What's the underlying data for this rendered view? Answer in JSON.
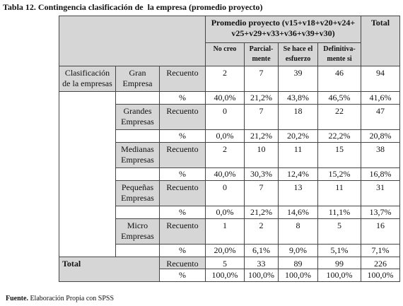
{
  "title": "Tabla 12. Contingencia clasificación de  la empresa (promedio proyecto)",
  "table": {
    "header": {
      "group": "Promedio proyecto (v15+v18+v20+v24+\nv25+v29+v33+v36+v39+v30)",
      "total": "Total",
      "columns": [
        "No creo",
        "Parcial-\nmente",
        "Se hace el\nesfuerzo",
        "Definitiva-\nmente si"
      ]
    },
    "row_group_label": "Clasificación\nde la empresas",
    "groups": [
      {
        "label": "Gran\nEmpresa",
        "rows": [
          {
            "measure": "Recuento",
            "cells": [
              "2",
              "7",
              "39",
              "46",
              "94"
            ]
          },
          {
            "measure": "%",
            "cells": [
              "40,0%",
              "21,2%",
              "43,8%",
              "46,5%",
              "41,6%"
            ]
          }
        ]
      },
      {
        "label": "Grandes\nEmpresas",
        "rows": [
          {
            "measure": "Recuento",
            "cells": [
              "0",
              "7",
              "18",
              "22",
              "47"
            ]
          },
          {
            "measure": "%",
            "cells": [
              "0,0%",
              "21,2%",
              "20,2%",
              "22,2%",
              "20,8%"
            ]
          }
        ]
      },
      {
        "label": "Medianas\nEmpresas",
        "rows": [
          {
            "measure": "Recuento",
            "cells": [
              "2",
              "10",
              "11",
              "15",
              "38"
            ]
          },
          {
            "measure": "%",
            "cells": [
              "40,0%",
              "30,3%",
              "12,4%",
              "15,2%",
              "16,8%"
            ]
          }
        ]
      },
      {
        "label": "Pequeñas\nEmpresas",
        "rows": [
          {
            "measure": "Recuento",
            "cells": [
              "0",
              "7",
              "13",
              "11",
              "31"
            ]
          },
          {
            "measure": "%",
            "cells": [
              "0,0%",
              "21,2%",
              "14,6%",
              "11,1%",
              "13,7%"
            ]
          }
        ]
      },
      {
        "label": "Micro\nEmpresas",
        "rows": [
          {
            "measure": "Recuento",
            "cells": [
              "1",
              "2",
              "8",
              "5",
              "16"
            ]
          },
          {
            "measure": "%",
            "cells": [
              "20,0%",
              "6,1%",
              "9,0%",
              "5,1%",
              "7,1%"
            ]
          }
        ]
      }
    ],
    "total": {
      "label": "Total",
      "rows": [
        {
          "measure": "Recuento",
          "cells": [
            "5",
            "33",
            "89",
            "99",
            "226"
          ]
        },
        {
          "measure": "%",
          "cells": [
            "100,0%",
            "100,0%",
            "100,0%",
            "100,0%",
            "100,0%"
          ]
        }
      ]
    }
  },
  "footer": {
    "source_label": "Fuente.",
    "source_text": "Elaboración Propia con SPSS"
  }
}
